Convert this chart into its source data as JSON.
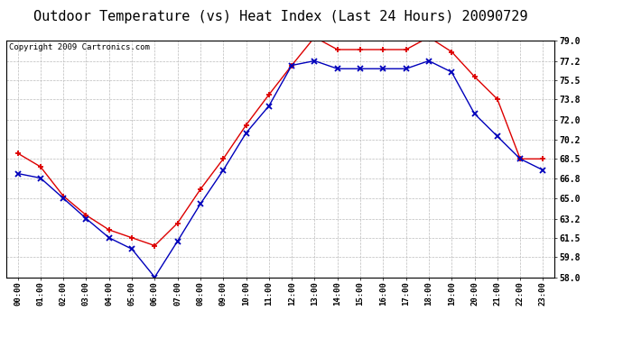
{
  "title": "Outdoor Temperature (vs) Heat Index (Last 24 Hours) 20090729",
  "copyright": "Copyright 2009 Cartronics.com",
  "hours": [
    "00:00",
    "01:00",
    "02:00",
    "03:00",
    "04:00",
    "05:00",
    "06:00",
    "07:00",
    "08:00",
    "09:00",
    "10:00",
    "11:00",
    "12:00",
    "13:00",
    "14:00",
    "15:00",
    "16:00",
    "17:00",
    "18:00",
    "19:00",
    "20:00",
    "21:00",
    "22:00",
    "23:00"
  ],
  "heat_index": [
    69.0,
    67.8,
    65.2,
    63.5,
    62.2,
    61.5,
    60.8,
    62.8,
    65.8,
    68.5,
    71.5,
    74.2,
    76.8,
    79.3,
    78.2,
    78.2,
    78.2,
    78.2,
    79.3,
    78.0,
    75.8,
    73.8,
    68.5,
    68.5
  ],
  "outdoor_temp": [
    67.2,
    66.8,
    65.0,
    63.2,
    61.5,
    60.5,
    58.0,
    61.2,
    64.5,
    67.5,
    70.8,
    73.2,
    76.8,
    77.2,
    76.5,
    76.5,
    76.5,
    76.5,
    77.2,
    76.2,
    72.5,
    70.5,
    68.5,
    67.5
  ],
  "ylim": [
    58.0,
    79.0
  ],
  "yticks": [
    58.0,
    59.8,
    61.5,
    63.2,
    65.0,
    66.8,
    68.5,
    70.2,
    72.0,
    73.8,
    75.5,
    77.2,
    79.0
  ],
  "heat_index_color": "#DD0000",
  "outdoor_temp_color": "#0000BB",
  "bg_color": "#FFFFFF",
  "plot_bg_color": "#FFFFFF",
  "grid_color": "#BBBBBB",
  "title_fontsize": 11,
  "copyright_fontsize": 6.5
}
